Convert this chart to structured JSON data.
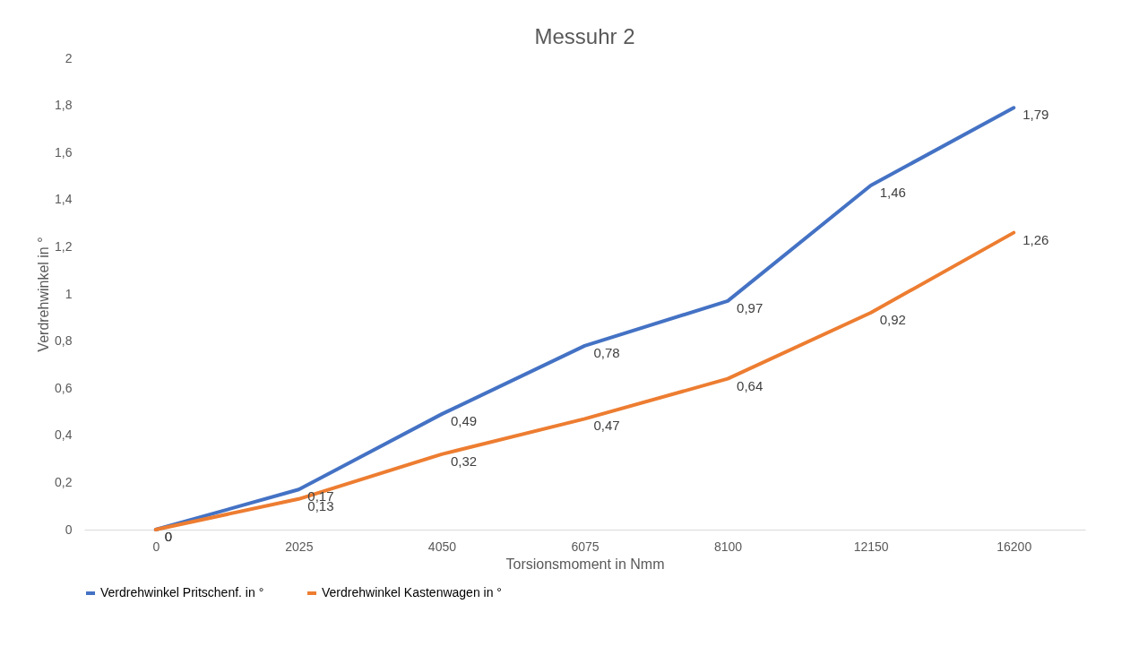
{
  "chart_data": {
    "type": "line",
    "title": "Messuhr 2",
    "xlabel": "Torsionsmoment in Nmm",
    "ylabel": "Verdrehwinkel in °",
    "categories": [
      "0",
      "2025",
      "4050",
      "6075",
      "8100",
      "12150",
      "16200"
    ],
    "series": [
      {
        "name": "Verdrehwinkel Pritschenf. in °",
        "color": "#4472c4",
        "values": [
          0,
          0.17,
          0.49,
          0.78,
          0.97,
          1.46,
          1.79
        ],
        "value_labels": [
          "0",
          "0,17",
          "0,49",
          "0,78",
          "0,97",
          "1,46",
          "1,79"
        ]
      },
      {
        "name": "Verdrehwinkel Kastenwagen in °",
        "color": "#ed7d31",
        "values": [
          0,
          0.13,
          0.32,
          0.47,
          0.64,
          0.92,
          1.26
        ],
        "value_labels": [
          "0",
          "0,13",
          "0,32",
          "0,47",
          "0,64",
          "0,92",
          "1,26"
        ]
      }
    ],
    "ylim": [
      0,
      2
    ],
    "yticks": [
      0,
      {
        "value": 0.2,
        "label": "0,2"
      },
      {
        "value": 0.4,
        "label": "0,4"
      },
      {
        "value": 0.6,
        "label": "0,6"
      },
      {
        "value": 0.8,
        "label": "0,8"
      },
      1,
      {
        "value": 1.2,
        "label": "1,2"
      },
      {
        "value": 1.4,
        "label": "1,4"
      },
      {
        "value": 1.6,
        "label": "1,6"
      },
      {
        "value": 1.8,
        "label": "1,8"
      },
      2
    ],
    "grid": false,
    "legend": "bottom",
    "marker": "none",
    "line_style": "solid"
  }
}
